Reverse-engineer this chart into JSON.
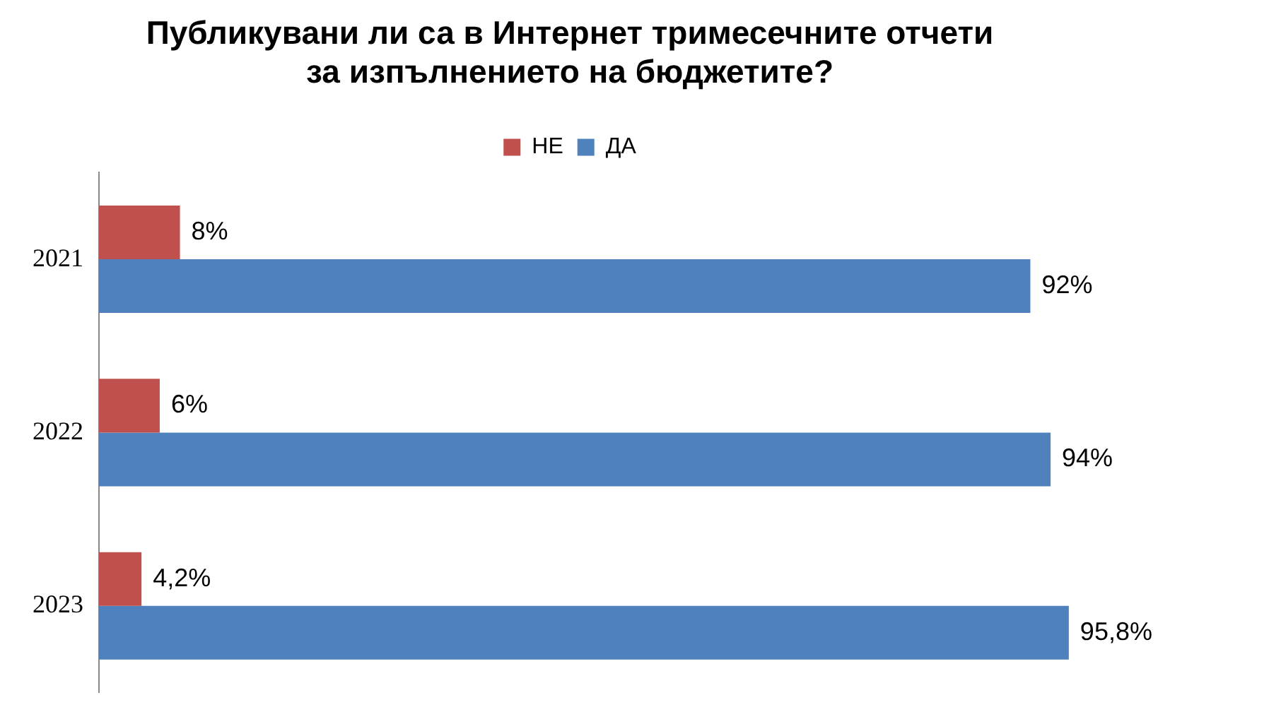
{
  "chart_data": {
    "type": "bar",
    "orientation": "horizontal",
    "title": "Публикувани ли са в Интернет тримесечните отчети за изпълнението на бюджетите?",
    "categories": [
      "2021",
      "2022",
      "2023"
    ],
    "series": [
      {
        "name": "НЕ",
        "color": "#c0504d",
        "values": [
          8,
          6,
          4.2
        ],
        "value_labels": [
          "8%",
          "6%",
          "4,2%"
        ]
      },
      {
        "name": "ДА",
        "color": "#4f81bd",
        "values": [
          92,
          94,
          95.8
        ],
        "value_labels": [
          "92%",
          "94%",
          "95,8%"
        ]
      }
    ],
    "legend": "top",
    "tick_labels": "y"
  }
}
